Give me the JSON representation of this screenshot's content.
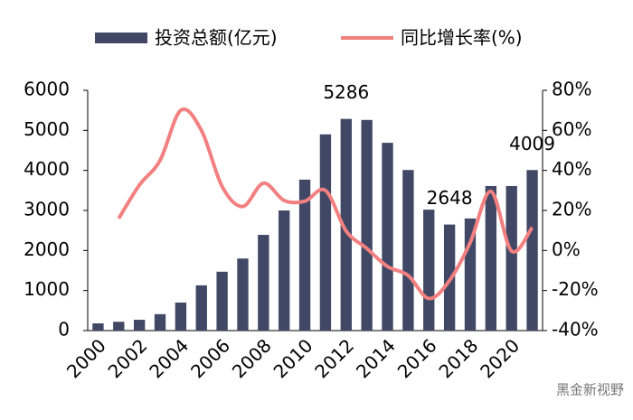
{
  "chart_data": {
    "type": "bar-line",
    "categories": [
      "2000",
      null,
      "2002",
      null,
      "2004",
      null,
      "2006",
      null,
      "2008",
      null,
      "2010",
      null,
      "2012",
      null,
      "2014",
      null,
      "2016",
      null,
      "2018",
      null,
      "2020",
      null
    ],
    "series": [
      {
        "name": "投资总额(亿元)",
        "type": "bar",
        "color": "#414866",
        "values": [
          180,
          220,
          270,
          410,
          700,
          1130,
          1470,
          1800,
          2390,
          3000,
          3770,
          4900,
          5286,
          5260,
          4690,
          4010,
          3020,
          2648,
          2800,
          3610,
          3610,
          4009
        ],
        "value_labels": [
          null,
          null,
          null,
          null,
          null,
          null,
          null,
          null,
          null,
          null,
          null,
          null,
          "5286",
          null,
          null,
          null,
          null,
          "2648",
          null,
          null,
          null,
          "4009"
        ]
      },
      {
        "name": "同比增长率(%)",
        "type": "line",
        "axis": "y2",
        "color": "#f28080",
        "values": [
          null,
          16,
          32.7,
          45,
          70,
          60,
          32,
          22,
          33.6,
          25,
          24.6,
          30,
          9.7,
          1,
          -8,
          -12.5,
          -24,
          -15,
          4,
          29.5,
          -0.3,
          11.5
        ]
      }
    ],
    "ylim": [
      0,
      6000
    ],
    "yticks": [
      0,
      1000,
      2000,
      3000,
      4000,
      5000,
      6000
    ],
    "y2lim": [
      -40,
      80
    ],
    "y2ticks": [
      {
        "value": -40,
        "label": "-40%"
      },
      {
        "value": -20,
        "label": "-20%"
      },
      {
        "value": 0,
        "label": "0%"
      },
      {
        "value": 20,
        "label": "20%"
      },
      {
        "value": 40,
        "label": "40%"
      },
      {
        "value": 60,
        "label": "60%"
      },
      {
        "value": 80,
        "label": "80%"
      }
    ],
    "legend": "top",
    "grid": false,
    "watermark": "黑金新视野"
  }
}
